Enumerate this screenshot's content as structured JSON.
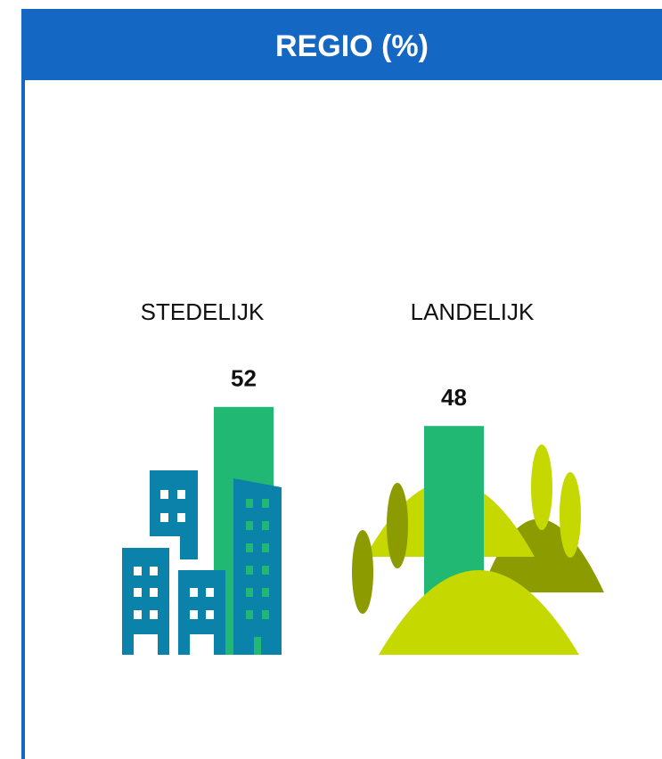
{
  "chart_data": {
    "type": "bar",
    "title": "REGIO (%)",
    "categories": [
      "STEDELIJK",
      "LANDELIJK"
    ],
    "values": [
      52,
      48
    ],
    "color": "#20b872"
  }
}
